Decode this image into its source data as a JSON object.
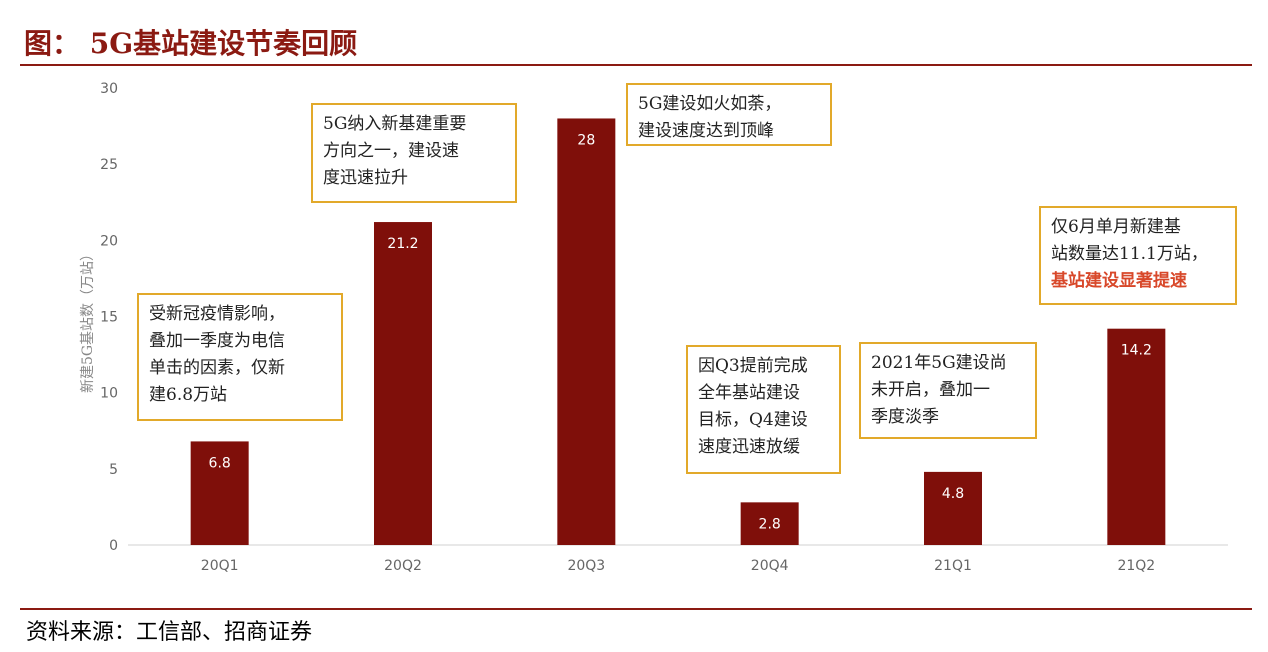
{
  "figure": {
    "title": "图： 5G基站建设节奏回顾",
    "source": "资料来源：工信部、招商证券"
  },
  "chart_data": {
    "type": "bar",
    "ylabel": "新建5G基站数（万站）",
    "xlabel": "",
    "ylim": [
      0,
      30
    ],
    "yticks": [
      0,
      5,
      10,
      15,
      20,
      25,
      30
    ],
    "categories": [
      "20Q1",
      "20Q2",
      "20Q3",
      "20Q4",
      "21Q1",
      "21Q2"
    ],
    "values": [
      6.8,
      21.2,
      28,
      2.8,
      4.8,
      14.2
    ],
    "data_labels": [
      "6.8",
      "21.2",
      "28",
      "2.8",
      "4.8",
      "14.2"
    ],
    "bar_color": "#7f0f0a",
    "grid": false,
    "annotations": [
      {
        "lines": [
          "受新冠疫情影响，",
          "叠加一季度为电信",
          "单击的因素，仅新",
          "建6.8万站"
        ]
      },
      {
        "lines": [
          "5G纳入新基建重要",
          "方向之一，建设速",
          "度迅速拉升"
        ]
      },
      {
        "lines": [
          "5G建设如火如荼，",
          "建设速度达到顶峰"
        ]
      },
      {
        "lines": [
          "因Q3提前完成",
          "全年基站建设",
          "目标，Q4建设",
          "速度迅速放缓"
        ]
      },
      {
        "lines": [
          "2021年5G建设尚",
          "未开启，叠加一",
          "季度淡季"
        ]
      },
      {
        "lines": [
          "仅6月单月新建基",
          "站数量达11.1万站，"
        ],
        "highlight": "基站建设显著提速"
      }
    ]
  }
}
